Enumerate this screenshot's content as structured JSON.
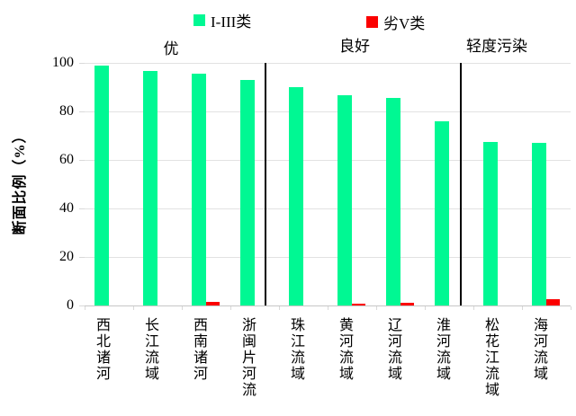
{
  "chart_data": {
    "type": "bar",
    "title": "",
    "ylabel": "断面比例（%）",
    "ylim": [
      0,
      100
    ],
    "yticks": [
      0,
      20,
      40,
      60,
      80,
      100
    ],
    "grid": true,
    "legend_position": "top",
    "categories": [
      "西北诸河",
      "长江流域",
      "西南诸河",
      "浙闽片河流",
      "珠江流域",
      "黄河流域",
      "辽河流域",
      "淮河流域",
      "松花江流域",
      "海河流域"
    ],
    "series": [
      {
        "name": "I-III类",
        "color": "#00f893",
        "values": [
          99,
          96.5,
          95.5,
          93,
          90,
          86.5,
          85.5,
          76,
          67.5,
          67
        ]
      },
      {
        "name": "劣V类",
        "color": "#fb0000",
        "values": [
          0,
          0,
          1.6,
          0,
          0,
          0.8,
          1.0,
          0,
          0,
          2.5
        ]
      }
    ],
    "groups": [
      {
        "label": "优",
        "categories": [
          "西北诸河",
          "长江流域",
          "西南诸河",
          "浙闽片河流"
        ]
      },
      {
        "label": "良好",
        "categories": [
          "珠江流域",
          "黄河流域",
          "辽河流域",
          "淮河流域"
        ]
      },
      {
        "label": "轻度污染",
        "categories": [
          "松花江流域",
          "海河流域"
        ]
      }
    ],
    "gridline_color": "#e2e2e2",
    "separator_color": "#000000"
  }
}
